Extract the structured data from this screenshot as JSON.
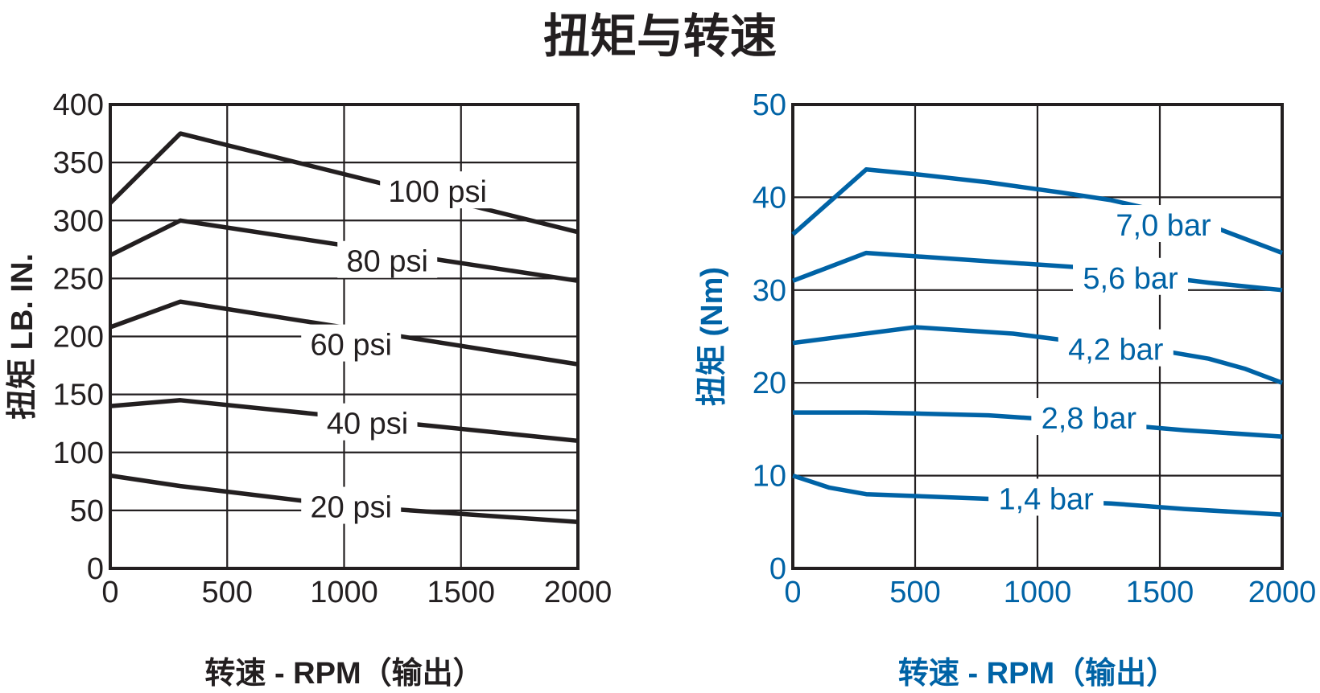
{
  "title": "扭矩与转速",
  "chart_data": [
    {
      "type": "line",
      "id": "imperial",
      "color": "#231f20",
      "xlabel": "转速 - RPM（输出）",
      "ylabel": "扭矩 LB. IN.",
      "xlim": [
        0,
        2000
      ],
      "ylim": [
        0,
        400
      ],
      "xticks": [
        0,
        500,
        1000,
        1500,
        2000
      ],
      "yticks": [
        0,
        50,
        100,
        150,
        200,
        250,
        300,
        350,
        400
      ],
      "grid": true,
      "series": [
        {
          "name": "100 psi",
          "points": [
            [
              0,
              315
            ],
            [
              300,
              375
            ],
            [
              2000,
              290
            ]
          ],
          "label_at": [
            1400,
            325
          ]
        },
        {
          "name": "80 psi",
          "points": [
            [
              0,
              270
            ],
            [
              300,
              300
            ],
            [
              2000,
              248
            ]
          ],
          "label_at": [
            1185,
            265
          ]
        },
        {
          "name": "60 psi",
          "points": [
            [
              0,
              208
            ],
            [
              300,
              230
            ],
            [
              2000,
              176
            ]
          ],
          "label_at": [
            1030,
            193
          ]
        },
        {
          "name": "40 psi",
          "points": [
            [
              0,
              140
            ],
            [
              300,
              145
            ],
            [
              2000,
              110
            ]
          ],
          "label_at": [
            1100,
            125
          ]
        },
        {
          "name": "20 psi",
          "points": [
            [
              0,
              80
            ],
            [
              300,
              71
            ],
            [
              1000,
              54
            ],
            [
              2000,
              40
            ]
          ],
          "label_at": [
            1030,
            53
          ]
        }
      ]
    },
    {
      "type": "line",
      "id": "metric",
      "color": "#0063a6",
      "xlabel": "转速 - RPM（输出）",
      "ylabel": "扭矩 (Nm)",
      "xlim": [
        0,
        2000
      ],
      "ylim": [
        0,
        50
      ],
      "xticks": [
        0,
        500,
        1000,
        1500,
        2000
      ],
      "yticks": [
        0,
        10,
        20,
        30,
        40,
        50
      ],
      "grid": true,
      "series": [
        {
          "name": "7,0 bar",
          "points": [
            [
              0,
              36
            ],
            [
              300,
              43
            ],
            [
              500,
              42.5
            ],
            [
              800,
              41.6
            ],
            [
              1100,
              40.5
            ],
            [
              1300,
              39.7
            ],
            [
              1500,
              38.5
            ],
            [
              1700,
              37
            ],
            [
              1850,
              35.5
            ],
            [
              2000,
              34
            ]
          ],
          "label_at": [
            1515,
            37
          ]
        },
        {
          "name": "5,6 bar",
          "points": [
            [
              0,
              31
            ],
            [
              300,
              34
            ],
            [
              800,
              33.1
            ],
            [
              1200,
              32.4
            ],
            [
              1700,
              30.8
            ],
            [
              2000,
              30
            ]
          ],
          "label_at": [
            1380,
            31.3
          ]
        },
        {
          "name": "4,2 bar",
          "points": [
            [
              0,
              24.3
            ],
            [
              500,
              26
            ],
            [
              900,
              25.3
            ],
            [
              1200,
              24.3
            ],
            [
              1500,
              23.5
            ],
            [
              1700,
              22.6
            ],
            [
              1850,
              21.5
            ],
            [
              2000,
              20
            ]
          ],
          "label_at": [
            1320,
            23.6
          ]
        },
        {
          "name": "2,8 bar",
          "points": [
            [
              0,
              16.8
            ],
            [
              300,
              16.8
            ],
            [
              500,
              16.7
            ],
            [
              800,
              16.5
            ],
            [
              1200,
              15.8
            ],
            [
              1600,
              14.9
            ],
            [
              2000,
              14.2
            ]
          ],
          "label_at": [
            1210,
            16.2
          ]
        },
        {
          "name": "1,4 bar",
          "points": [
            [
              0,
              10
            ],
            [
              150,
              8.7
            ],
            [
              300,
              8
            ],
            [
              800,
              7.5
            ],
            [
              1300,
              7
            ],
            [
              1600,
              6.4
            ],
            [
              2000,
              5.8
            ]
          ],
          "label_at": [
            1035,
            7.5
          ]
        }
      ]
    }
  ]
}
